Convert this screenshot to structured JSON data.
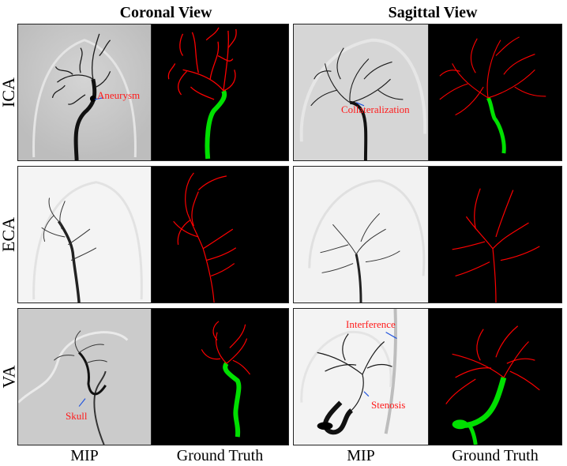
{
  "views": {
    "coronal": "Coronal View",
    "sagittal": "Sagittal View"
  },
  "rows": {
    "ica": "ICA",
    "eca": "ECA",
    "va": "VA"
  },
  "columns": {
    "mip_1": "MIP",
    "gt_1": "Ground Truth",
    "mip_2": "MIP",
    "gt_2": "Ground Truth"
  },
  "annotations": {
    "aneurysm": "Aneurysm",
    "collateralization": "Collateralization",
    "interference": "Interference",
    "stenosis": "Stenosis",
    "skull": "Skull"
  },
  "colors": {
    "vessel_red": "#ff0000",
    "vessel_green": "#00e000",
    "annotation_text": "#ff1a1a",
    "arrow_blue": "#2255dd",
    "gt_background": "#000000"
  }
}
